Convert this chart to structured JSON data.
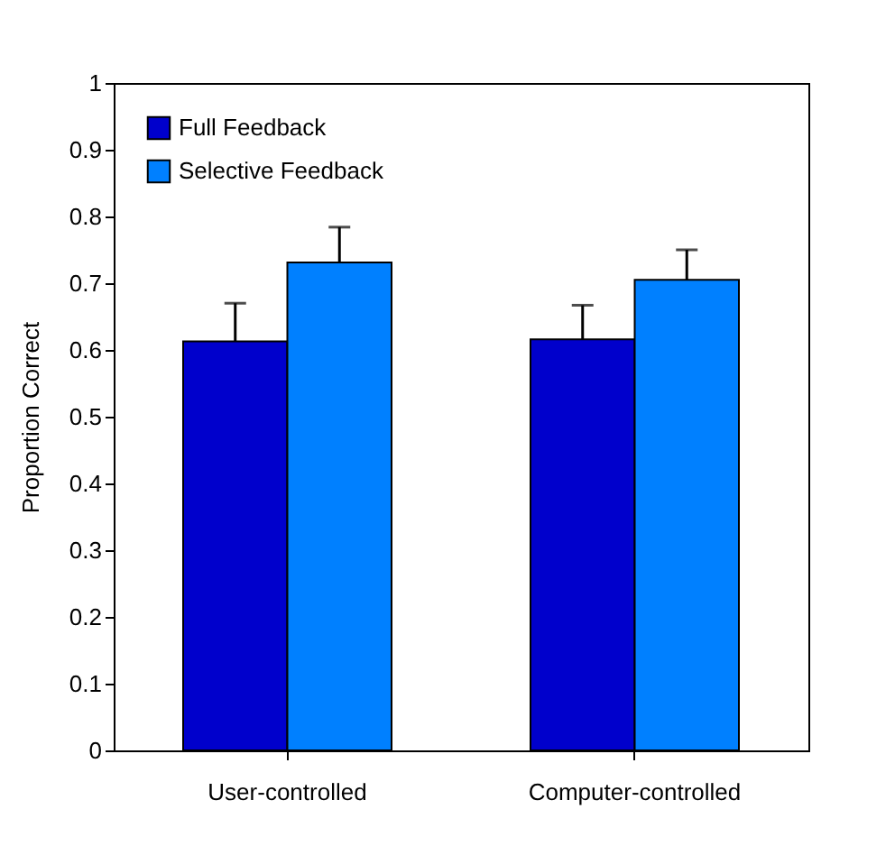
{
  "chart_data": {
    "type": "bar",
    "ylabel": "Proportion Correct",
    "categories": [
      "User-controlled",
      "Computer-controlled"
    ],
    "series": [
      {
        "name": "Full Feedback",
        "color": "#0000cc",
        "values": [
          0.613,
          0.616
        ],
        "errors": [
          [
            0.613,
            0.67
          ],
          [
            0.616,
            0.667
          ]
        ]
      },
      {
        "name": "Selective Feedback",
        "color": "#0080ff",
        "values": [
          0.731,
          0.705
        ],
        "errors": [
          [
            0.731,
            0.784
          ],
          [
            0.705,
            0.75
          ]
        ]
      }
    ],
    "ylim": [
      0,
      1
    ],
    "yticks": [
      0,
      0.1,
      0.2,
      0.3,
      0.4,
      0.5,
      0.6,
      0.7,
      0.8,
      0.9,
      1
    ],
    "grid": false,
    "legend": "top left"
  }
}
